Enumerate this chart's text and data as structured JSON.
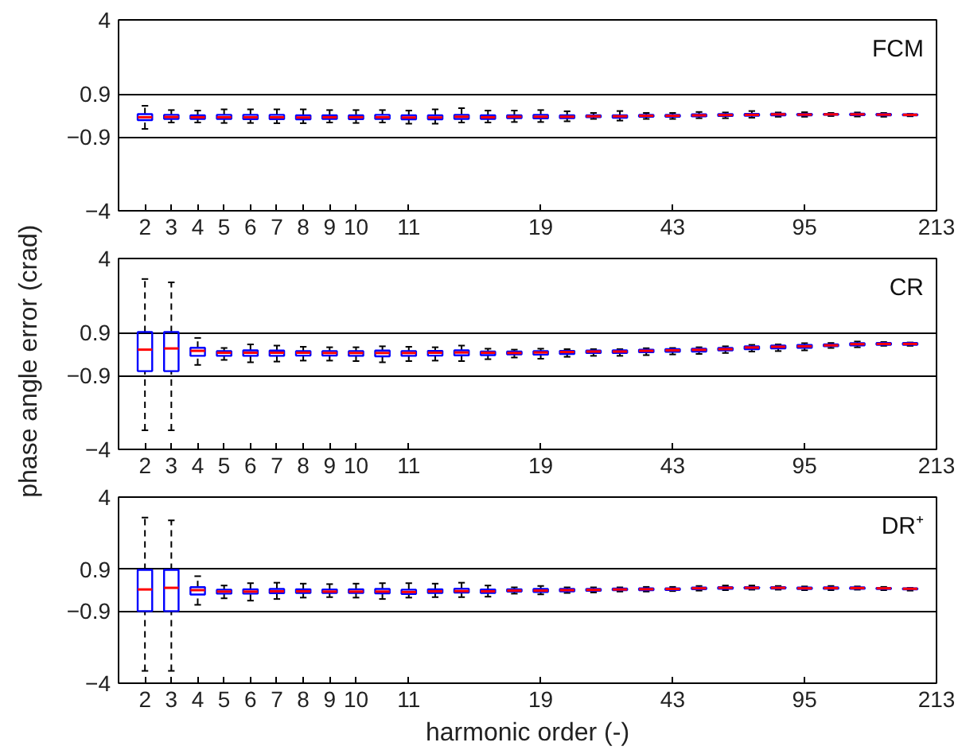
{
  "chart_data": [
    {
      "type": "box",
      "title": "FCM",
      "categories": [
        "2",
        "3",
        "4",
        "5",
        "6",
        "7",
        "8",
        "9",
        "10",
        null,
        "11",
        null,
        null,
        null,
        null,
        "19",
        null,
        null,
        null,
        null,
        "43",
        null,
        null,
        null,
        null,
        "95",
        null,
        null,
        null,
        null,
        "213"
      ],
      "ylim": [
        -4,
        4
      ],
      "yticks": [
        -4,
        -0.9,
        0.9,
        4
      ],
      "grid": "y",
      "series": [
        {
          "color": "#0000ff",
          "boxes": [
            {
              "low": -0.57,
              "q1": -0.2,
              "median": -0.08,
              "q3": 0.05,
              "high": 0.4
            },
            {
              "low": -0.3,
              "q1": -0.15,
              "median": -0.07,
              "q3": 0.02,
              "high": 0.22
            },
            {
              "low": -0.3,
              "q1": -0.15,
              "median": -0.08,
              "q3": 0.0,
              "high": 0.2
            },
            {
              "low": -0.32,
              "q1": -0.15,
              "median": -0.08,
              "q3": 0.02,
              "high": 0.25
            },
            {
              "low": -0.32,
              "q1": -0.16,
              "median": -0.08,
              "q3": 0.02,
              "high": 0.25
            },
            {
              "low": -0.33,
              "q1": -0.16,
              "median": -0.08,
              "q3": 0.02,
              "high": 0.25
            },
            {
              "low": -0.33,
              "q1": -0.17,
              "median": -0.09,
              "q3": 0.0,
              "high": 0.25
            },
            {
              "low": -0.3,
              "q1": -0.15,
              "median": -0.08,
              "q3": 0.0,
              "high": 0.22
            },
            {
              "low": -0.32,
              "q1": -0.16,
              "median": -0.08,
              "q3": 0.0,
              "high": 0.22
            },
            {
              "low": -0.3,
              "q1": -0.15,
              "median": -0.08,
              "q3": 0.02,
              "high": 0.22
            },
            {
              "low": -0.35,
              "q1": -0.17,
              "median": -0.09,
              "q3": 0.0,
              "high": 0.2
            },
            {
              "low": -0.35,
              "q1": -0.17,
              "median": -0.09,
              "q3": 0.0,
              "high": 0.25
            },
            {
              "low": -0.3,
              "q1": -0.15,
              "median": -0.06,
              "q3": 0.02,
              "high": 0.3
            },
            {
              "low": -0.3,
              "q1": -0.15,
              "median": -0.08,
              "q3": 0.0,
              "high": 0.2
            },
            {
              "low": -0.28,
              "q1": -0.12,
              "median": -0.06,
              "q3": 0.0,
              "high": 0.2
            },
            {
              "low": -0.28,
              "q1": -0.13,
              "median": -0.06,
              "q3": 0.02,
              "high": 0.22
            },
            {
              "low": -0.25,
              "q1": -0.12,
              "median": -0.06,
              "q3": 0.0,
              "high": 0.17
            },
            {
              "low": -0.15,
              "q1": -0.08,
              "median": -0.04,
              "q3": 0.0,
              "high": 0.1
            },
            {
              "low": -0.22,
              "q1": -0.1,
              "median": -0.04,
              "q3": 0.0,
              "high": 0.18
            },
            {
              "low": -0.15,
              "q1": -0.06,
              "median": -0.02,
              "q3": 0.02,
              "high": 0.1
            },
            {
              "low": -0.15,
              "q1": -0.06,
              "median": -0.02,
              "q3": 0.02,
              "high": 0.1
            },
            {
              "low": -0.12,
              "q1": -0.04,
              "median": 0.0,
              "q3": 0.04,
              "high": 0.14
            },
            {
              "low": -0.12,
              "q1": -0.03,
              "median": 0.01,
              "q3": 0.05,
              "high": 0.12
            },
            {
              "low": -0.1,
              "q1": -0.02,
              "median": 0.02,
              "q3": 0.06,
              "high": 0.18
            },
            {
              "low": -0.06,
              "q1": 0.0,
              "median": 0.04,
              "q3": 0.07,
              "high": 0.12
            },
            {
              "low": -0.06,
              "q1": 0.0,
              "median": 0.03,
              "q3": 0.06,
              "high": 0.13
            },
            {
              "low": -0.03,
              "q1": 0.02,
              "median": 0.04,
              "q3": 0.06,
              "high": 0.1
            },
            {
              "low": -0.05,
              "q1": 0.01,
              "median": 0.04,
              "q3": 0.07,
              "high": 0.12
            },
            {
              "low": -0.06,
              "q1": 0.0,
              "median": 0.03,
              "q3": 0.06,
              "high": 0.1
            },
            {
              "low": -0.04,
              "q1": 0.0,
              "median": 0.02,
              "q3": 0.04,
              "high": 0.06
            },
            null
          ]
        }
      ]
    },
    {
      "type": "box",
      "title": "CR",
      "ylabel": "phase angle error (crad)",
      "categories": [
        "2",
        "3",
        "4",
        "5",
        "6",
        "7",
        "8",
        "9",
        "10",
        null,
        "11",
        null,
        null,
        null,
        null,
        "19",
        null,
        null,
        null,
        null,
        "43",
        null,
        null,
        null,
        null,
        "95",
        null,
        null,
        null,
        null,
        "213"
      ],
      "ylim": [
        -4,
        4
      ],
      "yticks": [
        -4,
        -0.9,
        0.9,
        4
      ],
      "grid": "y",
      "series": [
        {
          "color": "#0000ff",
          "boxes": [
            {
              "low": -3.2,
              "q1": -0.72,
              "median": 0.18,
              "q3": 0.92,
              "high": 3.14
            },
            {
              "low": -3.2,
              "q1": -0.72,
              "median": 0.23,
              "q3": 0.92,
              "high": 3.0
            },
            {
              "low": -0.46,
              "q1": -0.08,
              "median": 0.13,
              "q3": 0.26,
              "high": 0.67
            },
            {
              "low": -0.25,
              "q1": -0.08,
              "median": 0.05,
              "q3": 0.12,
              "high": 0.25
            },
            {
              "low": -0.35,
              "q1": -0.08,
              "median": 0.05,
              "q3": 0.15,
              "high": 0.4
            },
            {
              "low": -0.32,
              "q1": -0.08,
              "median": 0.05,
              "q3": 0.14,
              "high": 0.35
            },
            {
              "low": -0.28,
              "q1": -0.07,
              "median": 0.05,
              "q3": 0.12,
              "high": 0.3
            },
            {
              "low": -0.28,
              "q1": -0.07,
              "median": 0.04,
              "q3": 0.12,
              "high": 0.28
            },
            {
              "low": -0.3,
              "q1": -0.08,
              "median": 0.04,
              "q3": 0.12,
              "high": 0.28
            },
            {
              "low": -0.35,
              "q1": -0.1,
              "median": 0.04,
              "q3": 0.14,
              "high": 0.32
            },
            {
              "low": -0.3,
              "q1": -0.08,
              "median": 0.04,
              "q3": 0.12,
              "high": 0.3
            },
            {
              "low": -0.28,
              "q1": -0.07,
              "median": 0.05,
              "q3": 0.13,
              "high": 0.28
            },
            {
              "low": -0.3,
              "q1": -0.06,
              "median": 0.06,
              "q3": 0.15,
              "high": 0.35
            },
            {
              "low": -0.22,
              "q1": -0.05,
              "median": 0.05,
              "q3": 0.1,
              "high": 0.22
            },
            {
              "low": -0.15,
              "q1": -0.02,
              "median": 0.04,
              "q3": 0.1,
              "high": 0.18
            },
            {
              "low": -0.2,
              "q1": -0.03,
              "median": 0.06,
              "q3": 0.12,
              "high": 0.22
            },
            {
              "low": -0.12,
              "q1": 0.0,
              "median": 0.08,
              "q3": 0.13,
              "high": 0.2
            },
            {
              "low": -0.08,
              "q1": 0.04,
              "median": 0.1,
              "q3": 0.14,
              "high": 0.2
            },
            {
              "low": -0.08,
              "q1": 0.04,
              "median": 0.1,
              "q3": 0.15,
              "high": 0.2
            },
            {
              "low": -0.05,
              "q1": 0.07,
              "median": 0.13,
              "q3": 0.18,
              "high": 0.24
            },
            {
              "low": -0.02,
              "q1": 0.09,
              "median": 0.15,
              "q3": 0.2,
              "high": 0.25
            },
            {
              "low": 0.0,
              "q1": 0.1,
              "median": 0.17,
              "q3": 0.22,
              "high": 0.28
            },
            {
              "low": 0.04,
              "q1": 0.15,
              "median": 0.2,
              "q3": 0.25,
              "high": 0.32
            },
            {
              "low": 0.1,
              "q1": 0.2,
              "median": 0.27,
              "q3": 0.32,
              "high": 0.38
            },
            {
              "low": 0.12,
              "q1": 0.23,
              "median": 0.3,
              "q3": 0.35,
              "high": 0.4
            },
            {
              "low": 0.15,
              "q1": 0.26,
              "median": 0.32,
              "q3": 0.38,
              "high": 0.45
            },
            {
              "low": 0.25,
              "q1": 0.32,
              "median": 0.36,
              "q3": 0.4,
              "high": 0.46
            },
            {
              "low": 0.28,
              "q1": 0.36,
              "median": 0.41,
              "q3": 0.45,
              "high": 0.52
            },
            {
              "low": 0.34,
              "q1": 0.38,
              "median": 0.42,
              "q3": 0.46,
              "high": 0.5
            },
            {
              "low": 0.34,
              "q1": 0.38,
              "median": 0.42,
              "q3": 0.46,
              "high": 0.48
            },
            null
          ]
        }
      ]
    },
    {
      "type": "box",
      "title": "DR⁺",
      "xlabel": "harmonic order (-)",
      "categories": [
        "2",
        "3",
        "4",
        "5",
        "6",
        "7",
        "8",
        "9",
        "10",
        null,
        "11",
        null,
        null,
        null,
        null,
        "19",
        null,
        null,
        null,
        null,
        "43",
        null,
        null,
        null,
        null,
        "95",
        null,
        null,
        null,
        null,
        "213"
      ],
      "ylim": [
        -4,
        4
      ],
      "yticks": [
        -4,
        -0.9,
        0.9,
        4
      ],
      "grid": "y",
      "series": [
        {
          "color": "#0000ff",
          "boxes": [
            {
              "low": -3.47,
              "q1": -0.9,
              "median": 0.03,
              "q3": 0.87,
              "high": 3.12
            },
            {
              "low": -3.47,
              "q1": -0.9,
              "median": 0.1,
              "q3": 0.87,
              "high": 3.0
            },
            {
              "low": -0.63,
              "q1": -0.19,
              "median": 0.0,
              "q3": 0.13,
              "high": 0.6
            },
            {
              "low": -0.35,
              "q1": -0.15,
              "median": -0.06,
              "q3": 0.02,
              "high": 0.2
            },
            {
              "low": -0.45,
              "q1": -0.15,
              "median": -0.06,
              "q3": 0.04,
              "high": 0.3
            },
            {
              "low": -0.38,
              "q1": -0.13,
              "median": -0.05,
              "q3": 0.05,
              "high": 0.32
            },
            {
              "low": -0.32,
              "q1": -0.12,
              "median": -0.05,
              "q3": 0.04,
              "high": 0.28
            },
            {
              "low": -0.3,
              "q1": -0.12,
              "median": -0.06,
              "q3": 0.03,
              "high": 0.26
            },
            {
              "low": -0.32,
              "q1": -0.12,
              "median": -0.06,
              "q3": 0.04,
              "high": 0.28
            },
            {
              "low": -0.38,
              "q1": -0.14,
              "median": -0.06,
              "q3": 0.05,
              "high": 0.3
            },
            {
              "low": -0.32,
              "q1": -0.16,
              "median": -0.08,
              "q3": 0.02,
              "high": 0.3
            },
            {
              "low": -0.3,
              "q1": -0.12,
              "median": -0.05,
              "q3": 0.04,
              "high": 0.28
            },
            {
              "low": -0.3,
              "q1": -0.1,
              "median": -0.04,
              "q3": 0.06,
              "high": 0.32
            },
            {
              "low": -0.28,
              "q1": -0.12,
              "median": -0.05,
              "q3": 0.03,
              "high": 0.2
            },
            {
              "low": -0.15,
              "q1": -0.06,
              "median": -0.02,
              "q3": 0.04,
              "high": 0.12
            },
            {
              "low": -0.18,
              "q1": -0.08,
              "median": -0.02,
              "q3": 0.05,
              "high": 0.18
            },
            {
              "low": -0.12,
              "q1": -0.05,
              "median": 0.0,
              "q3": 0.05,
              "high": 0.12
            },
            {
              "low": -0.1,
              "q1": -0.03,
              "median": 0.01,
              "q3": 0.05,
              "high": 0.12
            },
            {
              "low": -0.06,
              "q1": 0.0,
              "median": 0.03,
              "q3": 0.07,
              "high": 0.12
            },
            {
              "low": -0.06,
              "q1": 0.0,
              "median": 0.04,
              "q3": 0.08,
              "high": 0.14
            },
            {
              "low": -0.04,
              "q1": 0.01,
              "median": 0.05,
              "q3": 0.08,
              "high": 0.14
            },
            {
              "low": -0.02,
              "q1": 0.04,
              "median": 0.08,
              "q3": 0.11,
              "high": 0.18
            },
            {
              "low": 0.0,
              "q1": 0.06,
              "median": 0.1,
              "q3": 0.13,
              "high": 0.2
            },
            {
              "low": 0.02,
              "q1": 0.07,
              "median": 0.1,
              "q3": 0.13,
              "high": 0.2
            },
            {
              "low": 0.02,
              "q1": 0.07,
              "median": 0.1,
              "q3": 0.13,
              "high": 0.18
            },
            {
              "low": 0.0,
              "q1": 0.05,
              "median": 0.08,
              "q3": 0.11,
              "high": 0.16
            },
            {
              "low": 0.0,
              "q1": 0.06,
              "median": 0.09,
              "q3": 0.12,
              "high": 0.18
            },
            {
              "low": 0.02,
              "q1": 0.06,
              "median": 0.09,
              "q3": 0.12,
              "high": 0.16
            },
            {
              "low": 0.0,
              "q1": 0.05,
              "median": 0.08,
              "q3": 0.1,
              "high": 0.14
            },
            {
              "low": -0.02,
              "q1": 0.03,
              "median": 0.06,
              "q3": 0.08,
              "high": 0.1
            },
            null
          ]
        }
      ]
    }
  ]
}
